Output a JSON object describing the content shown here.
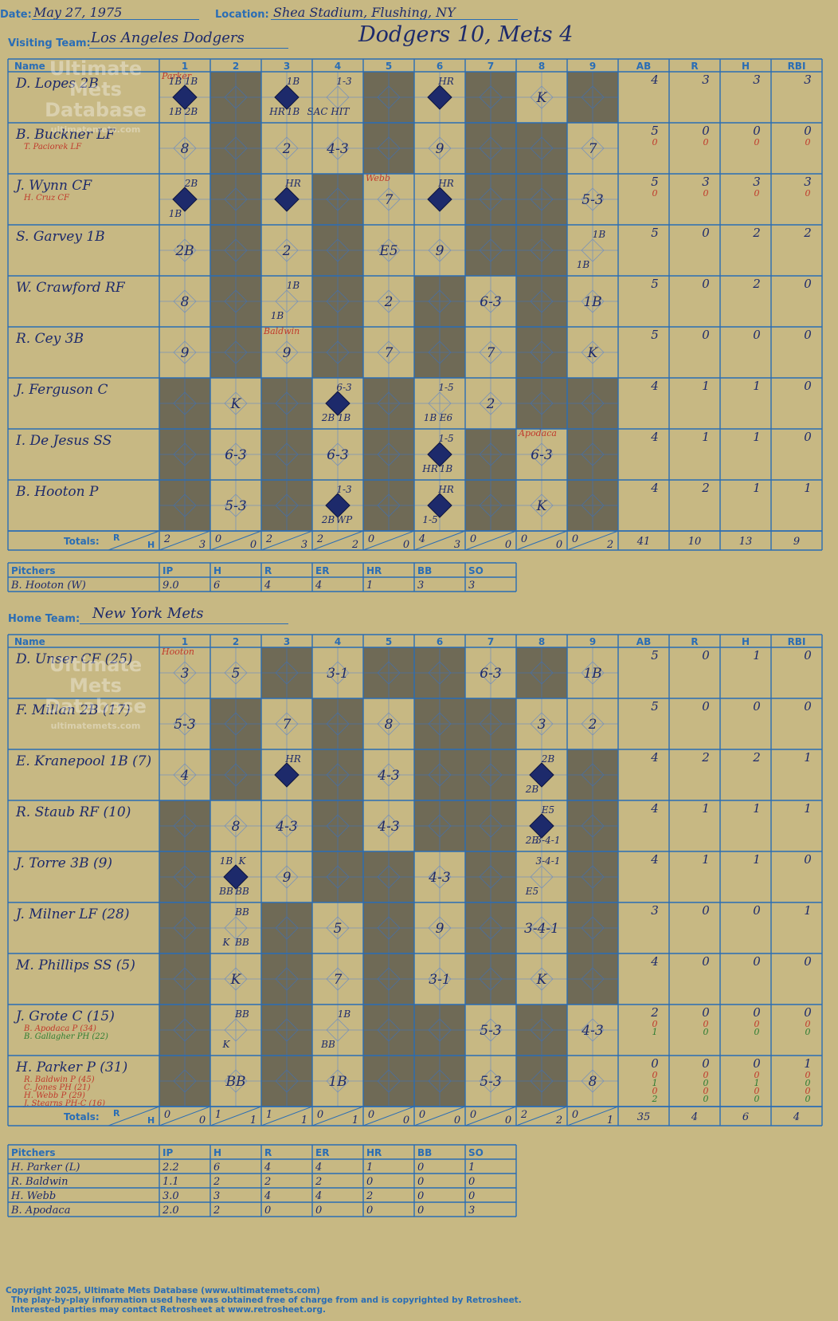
{
  "header": {
    "date_label": "Date:",
    "date": "May 27, 1975",
    "location_label": "Location:",
    "location": "Shea Stadium, Flushing, NY",
    "visiting_label": "Visiting Team:",
    "visiting_team": "Los Angeles Dodgers",
    "home_label": "Home Team:",
    "home_team": "New York Mets",
    "result": "Dodgers 10, Mets 4"
  },
  "watermark": {
    "line1": "Ultimate",
    "line2": "Mets",
    "line3": "Database",
    "url": "ultimatemets.com"
  },
  "columns": {
    "name": "Name",
    "innings": [
      "1",
      "2",
      "3",
      "4",
      "5",
      "6",
      "7",
      "8",
      "9"
    ],
    "stats": [
      "AB",
      "R",
      "H",
      "RBI"
    ],
    "totals": "Totals:",
    "rh_r": "R",
    "rh_h": "H"
  },
  "colors": {
    "dark_cell": "#6f6a56",
    "light_cell": "#c7b883",
    "grid": "#2a6db5",
    "ink": "#1d2a6b",
    "sub": "#c0392b",
    "green": "#2e7d32"
  },
  "visitors": {
    "players": [
      {
        "name": "D. Lopes 2B",
        "subs": [],
        "stats": [
          [
            "4",
            "3",
            "3",
            "3"
          ]
        ]
      },
      {
        "name": "B. Buckner LF",
        "subs": [
          "T. Paciorek LF"
        ],
        "stats": [
          [
            "5",
            "0",
            "0",
            "0"
          ],
          [
            "0",
            "0",
            "0",
            "0"
          ]
        ]
      },
      {
        "name": "J. Wynn CF",
        "subs": [
          "H. Cruz CF"
        ],
        "stats": [
          [
            "5",
            "3",
            "3",
            "3"
          ],
          [
            "0",
            "0",
            "0",
            "0"
          ]
        ]
      },
      {
        "name": "S. Garvey 1B",
        "subs": [],
        "stats": [
          [
            "5",
            "0",
            "2",
            "2"
          ]
        ]
      },
      {
        "name": "W. Crawford RF",
        "subs": [],
        "stats": [
          [
            "5",
            "0",
            "2",
            "0"
          ]
        ]
      },
      {
        "name": "R. Cey 3B",
        "subs": [],
        "stats": [
          [
            "5",
            "0",
            "0",
            "0"
          ]
        ]
      },
      {
        "name": "J. Ferguson C",
        "subs": [],
        "stats": [
          [
            "4",
            "1",
            "1",
            "0"
          ]
        ]
      },
      {
        "name": "I. De Jesus SS",
        "subs": [],
        "stats": [
          [
            "4",
            "1",
            "1",
            "0"
          ]
        ]
      },
      {
        "name": "B. Hooton P",
        "subs": [],
        "stats": [
          [
            "4",
            "2",
            "1",
            "1"
          ]
        ]
      }
    ],
    "innings_rh": [
      [
        "2",
        "3"
      ],
      [
        "0",
        "0"
      ],
      [
        "2",
        "3"
      ],
      [
        "2",
        "2"
      ],
      [
        "0",
        "0"
      ],
      [
        "4",
        "3"
      ],
      [
        "0",
        "0"
      ],
      [
        "0",
        "0"
      ],
      [
        "0",
        "2"
      ]
    ],
    "totals": [
      "41",
      "10",
      "13",
      "9"
    ],
    "pitchers": [
      {
        "name": "B. Hooton (W)",
        "ip": "9.0",
        "h": "6",
        "r": "4",
        "er": "4",
        "hr": "1",
        "bb": "3",
        "so": "3"
      }
    ]
  },
  "home": {
    "players": [
      {
        "name": "D. Unser CF (25)",
        "subs": [],
        "stats": [
          [
            "5",
            "0",
            "1",
            "0"
          ]
        ]
      },
      {
        "name": "F. Millan 2B (17)",
        "subs": [],
        "stats": [
          [
            "5",
            "0",
            "0",
            "0"
          ]
        ]
      },
      {
        "name": "E. Kranepool 1B (7)",
        "subs": [],
        "stats": [
          [
            "4",
            "2",
            "2",
            "1"
          ]
        ]
      },
      {
        "name": "R. Staub RF (10)",
        "subs": [],
        "stats": [
          [
            "4",
            "1",
            "1",
            "1"
          ]
        ]
      },
      {
        "name": "J. Torre 3B (9)",
        "subs": [],
        "stats": [
          [
            "4",
            "1",
            "1",
            "0"
          ]
        ]
      },
      {
        "name": "J. Milner LF (28)",
        "subs": [],
        "stats": [
          [
            "3",
            "0",
            "0",
            "1"
          ]
        ]
      },
      {
        "name": "M. Phillips SS (5)",
        "subs": [],
        "stats": [
          [
            "4",
            "0",
            "0",
            "0"
          ]
        ]
      },
      {
        "name": "J. Grote C (15)",
        "subs": [
          "B. Apodaca P (34)",
          "B. Gallagher PH (22)"
        ],
        "stats": [
          [
            "2",
            "0",
            "0",
            "0"
          ],
          [
            "0",
            "0",
            "0",
            "0"
          ],
          [
            "1",
            "0",
            "0",
            "0"
          ]
        ]
      },
      {
        "name": "H. Parker P (31)",
        "subs": [
          "R. Baldwin P (45)",
          "C. Jones PH (21)",
          "H. Webb P (29)",
          "J. Stearns PH-C (16)"
        ],
        "stats": [
          [
            "0",
            "0",
            "0",
            "1"
          ],
          [
            "0",
            "0",
            "0",
            "0"
          ],
          [
            "1",
            "0",
            "1",
            "0"
          ],
          [
            "0",
            "0",
            "0",
            "0"
          ],
          [
            "2",
            "0",
            "0",
            "0"
          ]
        ]
      }
    ],
    "innings_rh": [
      [
        "0",
        "0"
      ],
      [
        "1",
        "1"
      ],
      [
        "1",
        "1"
      ],
      [
        "0",
        "1"
      ],
      [
        "0",
        "0"
      ],
      [
        "0",
        "0"
      ],
      [
        "0",
        "0"
      ],
      [
        "2",
        "2"
      ],
      [
        "0",
        "1"
      ]
    ],
    "totals": [
      "35",
      "4",
      "6",
      "4"
    ],
    "pitchers": [
      {
        "name": "H. Parker (L)",
        "ip": "2.2",
        "h": "6",
        "r": "4",
        "er": "4",
        "hr": "1",
        "bb": "0",
        "so": "1"
      },
      {
        "name": "R. Baldwin",
        "ip": "1.1",
        "h": "2",
        "r": "2",
        "er": "2",
        "hr": "0",
        "bb": "0",
        "so": "0"
      },
      {
        "name": "H. Webb",
        "ip": "3.0",
        "h": "3",
        "r": "4",
        "er": "4",
        "hr": "2",
        "bb": "0",
        "so": "0"
      },
      {
        "name": "B. Apodaca",
        "ip": "2.0",
        "h": "2",
        "r": "0",
        "er": "0",
        "hr": "0",
        "bb": "0",
        "so": "3"
      }
    ]
  },
  "pitcher_headers": [
    "Pitchers",
    "IP",
    "H",
    "R",
    "ER",
    "HR",
    "BB",
    "SO"
  ],
  "plays_top": [
    [
      "Parker|1B|1B|2B|1B|run",
      "",
      "1B|HR|1B|run",
      "1-3|SAC HIT",
      "",
      "HR|run",
      "",
      "K",
      ""
    ],
    [
      "8",
      "",
      "2",
      "4-3",
      "",
      "9",
      "",
      "",
      "7"
    ],
    [
      "2B|1B|run",
      "",
      "HR|run",
      "",
      "Webb|7",
      "HR|run",
      "",
      "",
      "5-3"
    ],
    [
      "2B",
      "",
      "2",
      "",
      "E5",
      "9",
      "",
      "",
      "1B|1B"
    ],
    [
      "8",
      "",
      "1B|1B",
      "",
      "2",
      "",
      "6-3",
      "",
      "1B"
    ],
    [
      "9",
      "",
      "Baldwin|9",
      "",
      "7",
      "",
      "7",
      "",
      "K"
    ],
    [
      "",
      "K",
      "",
      "6-3|2B|1B|run",
      "",
      "1-5|1B|E6",
      "2",
      "",
      ""
    ],
    [
      "",
      "6-3",
      "",
      "6-3",
      "",
      "1-5|HR|1B|run",
      "",
      "Apodaca|6-3",
      ""
    ],
    [
      "",
      "5-3",
      "",
      "1-3|2B|WP|run",
      "",
      "HR|1-5|run",
      "",
      "K",
      ""
    ]
  ],
  "plays_bot": [
    [
      "Hooton|3",
      "5",
      "",
      "3-1",
      "",
      "",
      "6-3",
      "",
      "1B"
    ],
    [
      "5-3",
      "",
      "7",
      "",
      "8",
      "",
      "",
      "3",
      "2"
    ],
    [
      "4",
      "",
      "HR|run",
      "",
      "4-3",
      "",
      "",
      "2B|2B|run",
      ""
    ],
    [
      "",
      "8",
      "4-3",
      "",
      "4-3",
      "",
      "",
      "E5|2B|3-4-1|run",
      ""
    ],
    [
      "",
      "K|BB|BB|1B|run",
      "9",
      "",
      "",
      "4-3",
      "",
      "3-4-1|E5",
      ""
    ],
    [
      "",
      "BB|K|BB",
      "",
      "5",
      "",
      "9",
      "",
      "3-4-1",
      ""
    ],
    [
      "",
      "K",
      "",
      "7",
      "",
      "3-1",
      "",
      "K",
      ""
    ],
    [
      "",
      "BB|K",
      "",
      "1B|BB",
      "",
      "",
      "5-3",
      "",
      "4-3"
    ],
    [
      "",
      "BB",
      "",
      "1B",
      "",
      "",
      "5-3",
      "",
      "8"
    ]
  ],
  "footer": {
    "line1": "Copyright 2025, Ultimate Mets Database (www.ultimatemets.com)",
    "line2": "The play-by-play information used here was obtained free of charge from and is copyrighted by Retrosheet.",
    "line3": "Interested parties may contact Retrosheet at www.retrosheet.org."
  }
}
